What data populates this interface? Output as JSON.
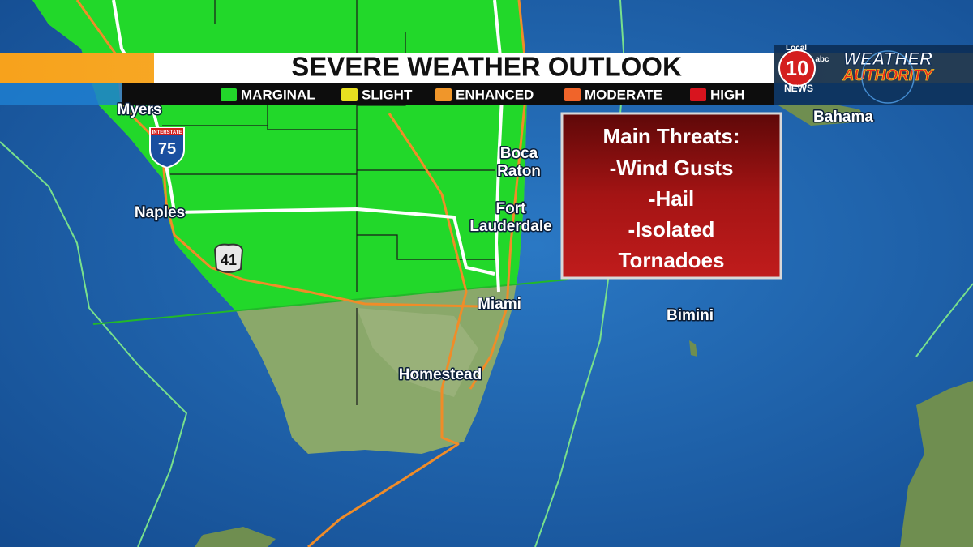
{
  "header": {
    "title": "SEVERE WEATHER OUTLOOK"
  },
  "legend": [
    {
      "label": "MARGINAL",
      "color": "#22d82a"
    },
    {
      "label": "SLIGHT",
      "color": "#e8e020"
    },
    {
      "label": "ENHANCED",
      "color": "#f0962a"
    },
    {
      "label": "MODERATE",
      "color": "#f0642a"
    },
    {
      "label": "HIGH",
      "color": "#d8141e"
    }
  ],
  "logo": {
    "local": "Local",
    "number": "10",
    "network": "abc",
    "news": "NEWS",
    "brand_line1": "WEATHER",
    "brand_line2": "AUTHORITY"
  },
  "threats": {
    "title": "Main Threats:",
    "items": [
      "-Wind Gusts",
      "-Hail",
      "-Isolated",
      "Tornadoes"
    ]
  },
  "map": {
    "cities": [
      {
        "lines": [
          "Myers"
        ]
      },
      {
        "lines": [
          "Naples"
        ]
      },
      {
        "lines": [
          "Boca",
          "Raton"
        ]
      },
      {
        "lines": [
          "Fort",
          "Lauderdale"
        ]
      },
      {
        "lines": [
          "Miami"
        ]
      },
      {
        "lines": [
          "Homestead"
        ]
      },
      {
        "lines": [
          "Bimini"
        ]
      },
      {
        "lines": [
          "Bahama"
        ]
      }
    ],
    "shields": [
      {
        "top": "INTERSTATE",
        "label": "75"
      },
      {
        "label": "41"
      }
    ]
  }
}
